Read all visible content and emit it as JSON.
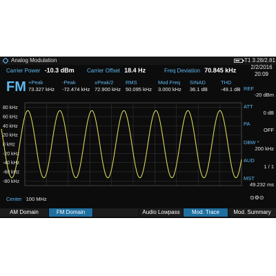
{
  "window": {
    "title": "Analog Modulation",
    "status": "T1 3.28/2.81",
    "battery_level": 0.7
  },
  "measurements": {
    "carrier_power": {
      "label": "Carrier Power",
      "value": "-10.3 dBm"
    },
    "carrier_offset": {
      "label": "Carrier Offset",
      "value": "18.4 Hz"
    },
    "freq_deviation": {
      "label": "Freq Deviation",
      "value": "70.845 kHz"
    }
  },
  "mode": "FM",
  "results": [
    {
      "label": "+Peak",
      "value": "73.327 kHz"
    },
    {
      "label": "-Peak",
      "value": "-72.474 kHz"
    },
    {
      "label": "±Peak/2",
      "value": "72.900 kHz"
    },
    {
      "label": "RMS",
      "value": "50.095 kHz"
    },
    {
      "label": "Mod Freq",
      "value": "3.000 kHz"
    },
    {
      "label": "SINAD",
      "value": "36.1 dB"
    },
    {
      "label": "THD",
      "value": "-49.1 dB"
    }
  ],
  "datetime": {
    "date": "2/2/2016",
    "time": "20:09"
  },
  "side_params": [
    {
      "label": "REF",
      "value": "-20 dBm"
    },
    {
      "label": "ATT",
      "value": "0 dB"
    },
    {
      "label": "PA",
      "value": "OFF"
    },
    {
      "label": "DBW *",
      "value": "200 kHz"
    },
    {
      "label": "AUD",
      "value": "1 / 1"
    },
    {
      "label": "MST",
      "value": "49.232 ms"
    }
  ],
  "chart_data": {
    "type": "line",
    "y_tick_labels": [
      "80 kHz",
      "60 kHz",
      "40 kHz",
      "20 kHz",
      "0 kHz",
      "-20 kHz",
      "-40 kHz",
      "-60 kHz",
      "-80 kHz"
    ],
    "ylim": [
      -90,
      90
    ],
    "series_color": "#d8d85a",
    "amplitude_khz": 73,
    "cycles": 7.5,
    "grid": true
  },
  "center": {
    "label": "Center",
    "value": "100 MHz"
  },
  "controls_glyph": "⊙⚙⊙",
  "softkeys": [
    "AM Domain",
    "FM Domain",
    "",
    "Audio Lowpass",
    "Mod. Trace",
    "Mod. Summary"
  ],
  "colors": {
    "accent": "#5fb8f0",
    "trace": "#d8d85a",
    "active_key": "#1f6fa0"
  }
}
